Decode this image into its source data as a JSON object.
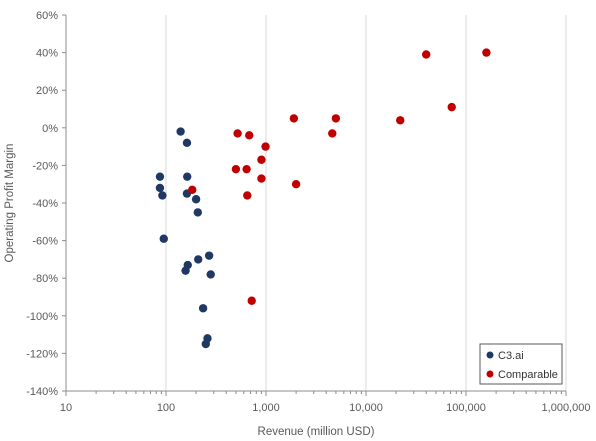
{
  "chart_data": {
    "type": "scatter",
    "xlabel": "Revenue (million USD)",
    "ylabel": "Operating Profit Margin",
    "xscale": "log",
    "xlim": [
      10,
      1000000
    ],
    "ylim": [
      -140,
      60
    ],
    "y_unit": "%",
    "x_ticks": [
      10,
      100,
      1000,
      10000,
      100000,
      1000000
    ],
    "x_tick_labels": [
      "10",
      "100",
      "1,000",
      "10,000",
      "100,000",
      "1,000,000"
    ],
    "y_ticks": [
      60,
      40,
      20,
      0,
      -20,
      -40,
      -60,
      -80,
      -100,
      -120,
      -140
    ],
    "y_tick_labels": [
      "60%",
      "40%",
      "20%",
      "0%",
      "-20%",
      "-40%",
      "-60%",
      "-80%",
      "-100%",
      "-120%",
      "-140%"
    ],
    "grid": "vertical",
    "legend_position": "bottom-right",
    "series": [
      {
        "name": "C3.ai",
        "color": "#1f3864",
        "points": [
          [
            140,
            -2
          ],
          [
            162,
            -8
          ],
          [
            87,
            -26
          ],
          [
            87,
            -32
          ],
          [
            92,
            -36
          ],
          [
            163,
            -26
          ],
          [
            162,
            -35
          ],
          [
            200,
            -38
          ],
          [
            208,
            -45
          ],
          [
            95,
            -59
          ],
          [
            270,
            -68
          ],
          [
            210,
            -70
          ],
          [
            165,
            -73
          ],
          [
            157,
            -76
          ],
          [
            280,
            -78
          ],
          [
            235,
            -96
          ],
          [
            260,
            -112
          ],
          [
            250,
            -115
          ]
        ]
      },
      {
        "name": "Comparable",
        "color": "#c00000",
        "points": [
          [
            183,
            -33
          ],
          [
            520,
            -3
          ],
          [
            680,
            -4
          ],
          [
            990,
            -10
          ],
          [
            1900,
            5
          ],
          [
            5000,
            5
          ],
          [
            4600,
            -3
          ],
          [
            900,
            -17
          ],
          [
            500,
            -22
          ],
          [
            640,
            -22
          ],
          [
            900,
            -27
          ],
          [
            650,
            -36
          ],
          [
            2000,
            -30
          ],
          [
            22000,
            4
          ],
          [
            40000,
            39
          ],
          [
            160000,
            40
          ],
          [
            72000,
            11
          ],
          [
            720,
            -92
          ]
        ]
      }
    ]
  }
}
